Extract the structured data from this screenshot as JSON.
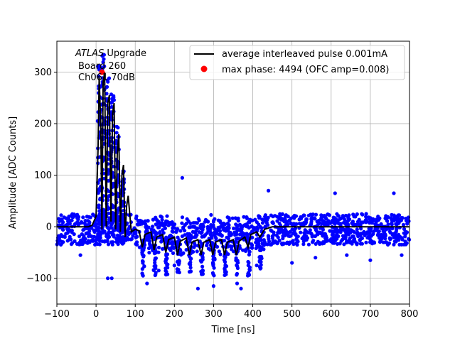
{
  "chart_data": {
    "type": "scatter",
    "xlabel": "Time [ns]",
    "ylabel": "Amplitude [ADC Counts]",
    "xlim": [
      -100,
      800
    ],
    "ylim": [
      -150,
      360
    ],
    "xticks": [
      -100,
      0,
      100,
      200,
      300,
      400,
      500,
      600,
      700,
      800
    ],
    "yticks": [
      -100,
      0,
      100,
      200,
      300
    ],
    "grid": true,
    "legend_position": "top-right",
    "annotation": {
      "italic": "ATLAS",
      "rest": " Upgrade",
      "line2": "Board 260",
      "line3": "Ch061 70dB"
    },
    "colors": {
      "scatter": "#0000ff",
      "line": "#000000",
      "marker": "#ff0000"
    },
    "series": [
      {
        "name": "average interleaved pulse 0.001mA",
        "type": "line",
        "color": "#000000",
        "points": [
          [
            -100,
            0
          ],
          [
            -20,
            0
          ],
          [
            -10,
            3
          ],
          [
            0,
            20
          ],
          [
            5,
            150
          ],
          [
            8,
            290
          ],
          [
            12,
            200
          ],
          [
            15,
            -5
          ],
          [
            18,
            280
          ],
          [
            22,
            300
          ],
          [
            26,
            0
          ],
          [
            30,
            240
          ],
          [
            34,
            255
          ],
          [
            38,
            10
          ],
          [
            42,
            220
          ],
          [
            46,
            240
          ],
          [
            50,
            -5
          ],
          [
            54,
            140
          ],
          [
            58,
            180
          ],
          [
            62,
            -10
          ],
          [
            66,
            100
          ],
          [
            70,
            120
          ],
          [
            74,
            -20
          ],
          [
            78,
            40
          ],
          [
            82,
            60
          ],
          [
            90,
            -10
          ],
          [
            100,
            -5
          ],
          [
            110,
            -8
          ],
          [
            118,
            -40
          ],
          [
            125,
            -15
          ],
          [
            140,
            -10
          ],
          [
            148,
            -45
          ],
          [
            155,
            -20
          ],
          [
            170,
            -15
          ],
          [
            178,
            -50
          ],
          [
            185,
            -25
          ],
          [
            200,
            -20
          ],
          [
            208,
            -55
          ],
          [
            215,
            -28
          ],
          [
            230,
            -22
          ],
          [
            238,
            -55
          ],
          [
            245,
            -30
          ],
          [
            260,
            -25
          ],
          [
            268,
            -55
          ],
          [
            275,
            -30
          ],
          [
            290,
            -25
          ],
          [
            298,
            -55
          ],
          [
            305,
            -30
          ],
          [
            320,
            -25
          ],
          [
            328,
            -55
          ],
          [
            335,
            -30
          ],
          [
            350,
            -25
          ],
          [
            358,
            -55
          ],
          [
            365,
            -28
          ],
          [
            380,
            -20
          ],
          [
            388,
            -40
          ],
          [
            395,
            -15
          ],
          [
            410,
            -10
          ],
          [
            418,
            -20
          ],
          [
            430,
            -5
          ],
          [
            450,
            0
          ],
          [
            500,
            0
          ],
          [
            600,
            0
          ],
          [
            700,
            0
          ],
          [
            800,
            0
          ]
        ]
      },
      {
        "name": "max phase: 4494 (OFC amp=0.008)",
        "type": "marker",
        "color": "#ff0000",
        "points": [
          [
            15,
            300
          ]
        ]
      }
    ],
    "scatter_envelope": {
      "description_values": "ADC samples (blue points), pedestal noise band approx -30 to 25 counts",
      "spread_low": -35,
      "spread_high": 25,
      "peaks": [
        [
          8,
          320
        ],
        [
          18,
          335
        ],
        [
          30,
          290
        ],
        [
          42,
          265
        ],
        [
          55,
          195
        ],
        [
          68,
          115
        ]
      ],
      "outliers": [
        [
          -40,
          -55
        ],
        [
          120,
          -95
        ],
        [
          130,
          -110
        ],
        [
          160,
          -85
        ],
        [
          200,
          -75
        ],
        [
          220,
          95
        ],
        [
          260,
          -120
        ],
        [
          300,
          -115
        ],
        [
          360,
          -110
        ],
        [
          410,
          -75
        ],
        [
          500,
          -70
        ],
        [
          560,
          -60
        ],
        [
          640,
          -55
        ],
        [
          700,
          -65
        ],
        [
          780,
          -55
        ],
        [
          370,
          -120
        ],
        [
          40,
          -100
        ],
        [
          30,
          -100
        ],
        [
          440,
          70
        ],
        [
          610,
          65
        ],
        [
          760,
          65
        ]
      ]
    }
  }
}
